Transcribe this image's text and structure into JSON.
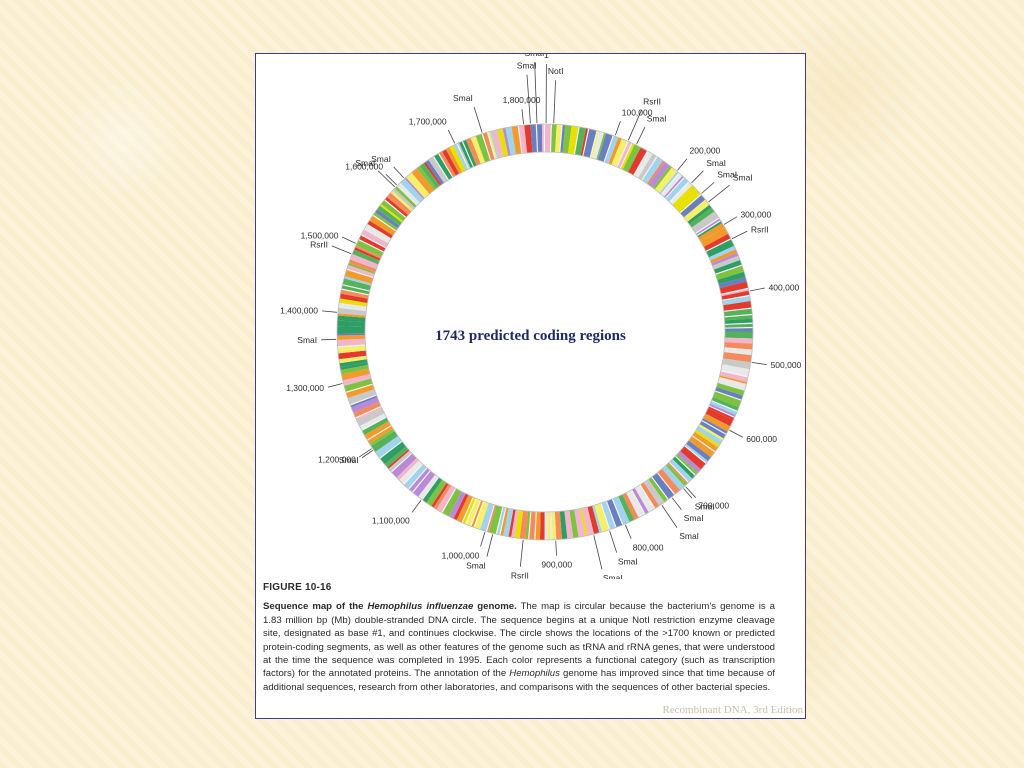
{
  "overlay_title": "1743 predicted coding regions",
  "figure": {
    "label": "FIGURE 10-16",
    "heading_prefix": "Sequence map of the ",
    "heading_italic": "Hemophilus influenzae",
    "heading_suffix": " genome.",
    "text_1": " The map is circular because the bacterium’s genome is a 1.83 million bp (Mb) double-stranded DNA circle. The sequence begins at a unique NotI restriction enzyme cleavage site, designated as base #1, and continues clockwise. The circle shows the locations of the >1700 known or predicted protein-coding segments, as well as other features of the genome such as tRNA and rRNA genes, that were understood at the time the sequence was completed in 1995. Each color represents a functional category (such as transcription factors) for the annotated proteins. The annotation of the ",
    "text_italic": "Hemophilus",
    "text_2": " genome has improved since that time because of additional sequences, research from other laboratories, and comparisons with the sequences of other bacterial species."
  },
  "credit": "Recombinant DNA, 3rd Edition",
  "genome": {
    "total_bp": 1830000,
    "ring_colors": [
      "#e8e000",
      "#7ec242",
      "#f39a2c",
      "#e23b2e",
      "#9fd4ec",
      "#6a7fc0",
      "#c9c9c9",
      "#f6ef6a",
      "#56b25a",
      "#f2b6cc",
      "#b98ad6",
      "#2f9e63",
      "#e9e9e9",
      "#f58a5a"
    ],
    "position_markers": [
      {
        "bp": 100000,
        "label": "100,000"
      },
      {
        "bp": 200000,
        "label": "200,000"
      },
      {
        "bp": 300000,
        "label": "300,000"
      },
      {
        "bp": 400000,
        "label": "400,000"
      },
      {
        "bp": 500000,
        "label": "500,000"
      },
      {
        "bp": 600000,
        "label": "600,000"
      },
      {
        "bp": 700000,
        "label": "700,000"
      },
      {
        "bp": 800000,
        "label": "800,000"
      },
      {
        "bp": 900000,
        "label": "900,000"
      },
      {
        "bp": 1000000,
        "label": "1,000,000"
      },
      {
        "bp": 1100000,
        "label": "1,100,000"
      },
      {
        "bp": 1200000,
        "label": "1,200,000"
      },
      {
        "bp": 1300000,
        "label": "1,300,000"
      },
      {
        "bp": 1400000,
        "label": "1,400,000"
      },
      {
        "bp": 1500000,
        "label": "1,500,000"
      },
      {
        "bp": 1600000,
        "label": "1,600,000"
      },
      {
        "bp": 1700000,
        "label": "1,700,000"
      },
      {
        "bp": 1800000,
        "label": "1,800,000"
      }
    ],
    "site_markers": [
      {
        "label": "1"
      },
      {
        "label": "NotI"
      },
      {
        "label": "SmaI"
      },
      {
        "label": "SmaI"
      },
      {
        "label": "RsrII"
      },
      {
        "label": "SmaI"
      },
      {
        "label": "SmaI"
      },
      {
        "label": "SmaI"
      },
      {
        "label": "SmaI"
      },
      {
        "label": "RsrII"
      },
      {
        "label": "SmaI"
      },
      {
        "label": "SmaI"
      },
      {
        "label": "SmaI"
      },
      {
        "label": "SmaI"
      },
      {
        "label": "SmaI"
      },
      {
        "label": "RsrII"
      },
      {
        "label": "SmaI"
      },
      {
        "label": "SmaI"
      },
      {
        "label": "SmaI"
      },
      {
        "label": "RsrII"
      },
      {
        "label": "SmaI"
      },
      {
        "label": "SmaI"
      },
      {
        "label": "SmaI"
      }
    ]
  }
}
